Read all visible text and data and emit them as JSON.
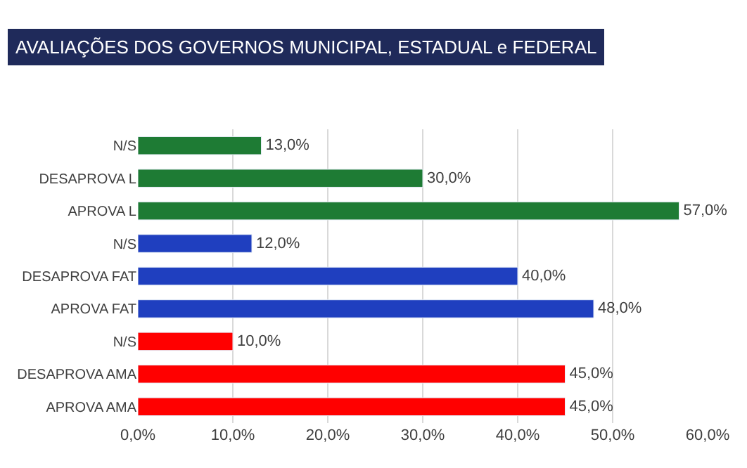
{
  "chart_data": {
    "type": "bar",
    "orientation": "horizontal",
    "title": "AVALIAÇÕES DOS GOVERNOS MUNICIPAL, ESTADUAL e FEDERAL",
    "categories": [
      "N/S",
      "DESAPROVA L",
      "APROVA L",
      "N/S",
      "DESAPROVA FAT",
      "APROVA FAT",
      "N/S",
      "DESAPROVA AMA",
      "APROVA AMA"
    ],
    "values": [
      13,
      30,
      57,
      12,
      40,
      48,
      10,
      45,
      45
    ],
    "colors": [
      "#1e7b34",
      "#1e7b34",
      "#1e7b34",
      "#1f3fbf",
      "#1f3fbf",
      "#1f3fbf",
      "#ff0000",
      "#ff0000",
      "#ff0000"
    ],
    "value_labels": [
      "13,0%",
      "30,0%",
      "57,0%",
      "12,0%",
      "40,0%",
      "48,0%",
      "10,0%",
      "45,0%",
      "45,0%"
    ],
    "xlim": [
      0,
      60
    ],
    "xticks": [
      {
        "value": 0,
        "label": "0,0%"
      },
      {
        "value": 10,
        "label": "10,0%"
      },
      {
        "value": 20,
        "label": "20,0%"
      },
      {
        "value": 30,
        "label": "30,0%"
      },
      {
        "value": 40,
        "label": "40,0%"
      },
      {
        "value": 50,
        "label": "50,0%"
      },
      {
        "value": 60,
        "label": "60,0%"
      }
    ],
    "grid": "x",
    "legend": false
  }
}
